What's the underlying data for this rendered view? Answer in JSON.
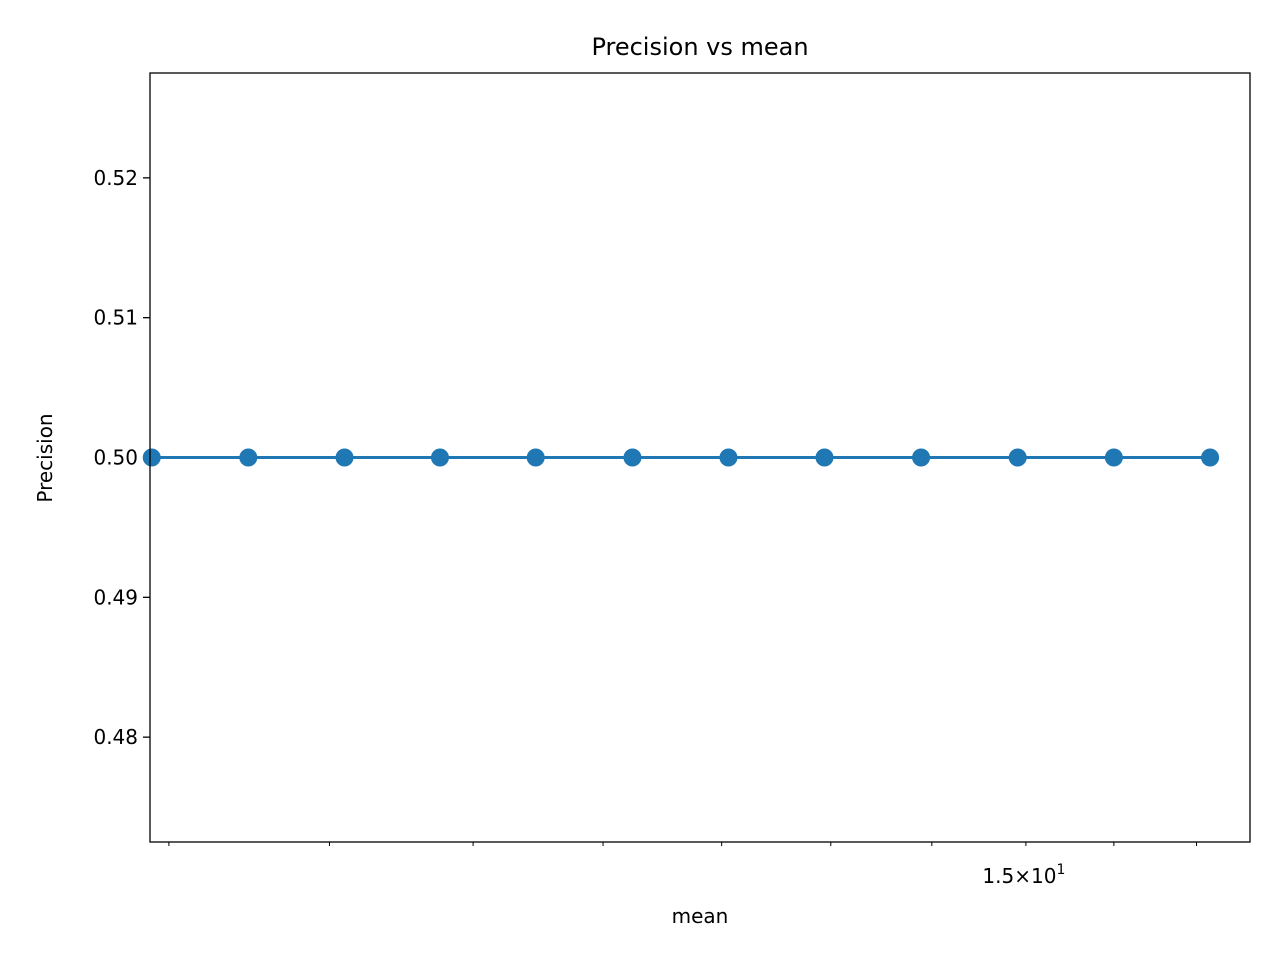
{
  "chart_data": {
    "type": "line",
    "title": "Precision vs mean",
    "xlabel": "mean",
    "ylabel": "Precision",
    "x_scale": "log",
    "xlim": [
      7.89,
      17.68
    ],
    "ylim": [
      0.4725,
      0.5275
    ],
    "x_tick_labels": [
      {
        "value": 15,
        "mantissa": "1.5",
        "base": "10",
        "exponent": "1"
      }
    ],
    "y_ticks": [
      {
        "value": 0.48,
        "label": "0.48"
      },
      {
        "value": 0.49,
        "label": "0.49"
      },
      {
        "value": 0.5,
        "label": "0.50"
      },
      {
        "value": 0.51,
        "label": "0.51"
      },
      {
        "value": 0.52,
        "label": "0.52"
      }
    ],
    "grid": false,
    "legend": "none",
    "color": "#1f77b4",
    "series": [
      {
        "x": [
          7.9,
          8.48,
          9.1,
          9.76,
          10.47,
          11.24,
          12.06,
          12.94,
          13.89,
          14.91,
          16.0,
          17.17
        ],
        "y": [
          0.5,
          0.5,
          0.5,
          0.5,
          0.5,
          0.5,
          0.5,
          0.5,
          0.5,
          0.5,
          0.5,
          0.5
        ]
      }
    ]
  }
}
